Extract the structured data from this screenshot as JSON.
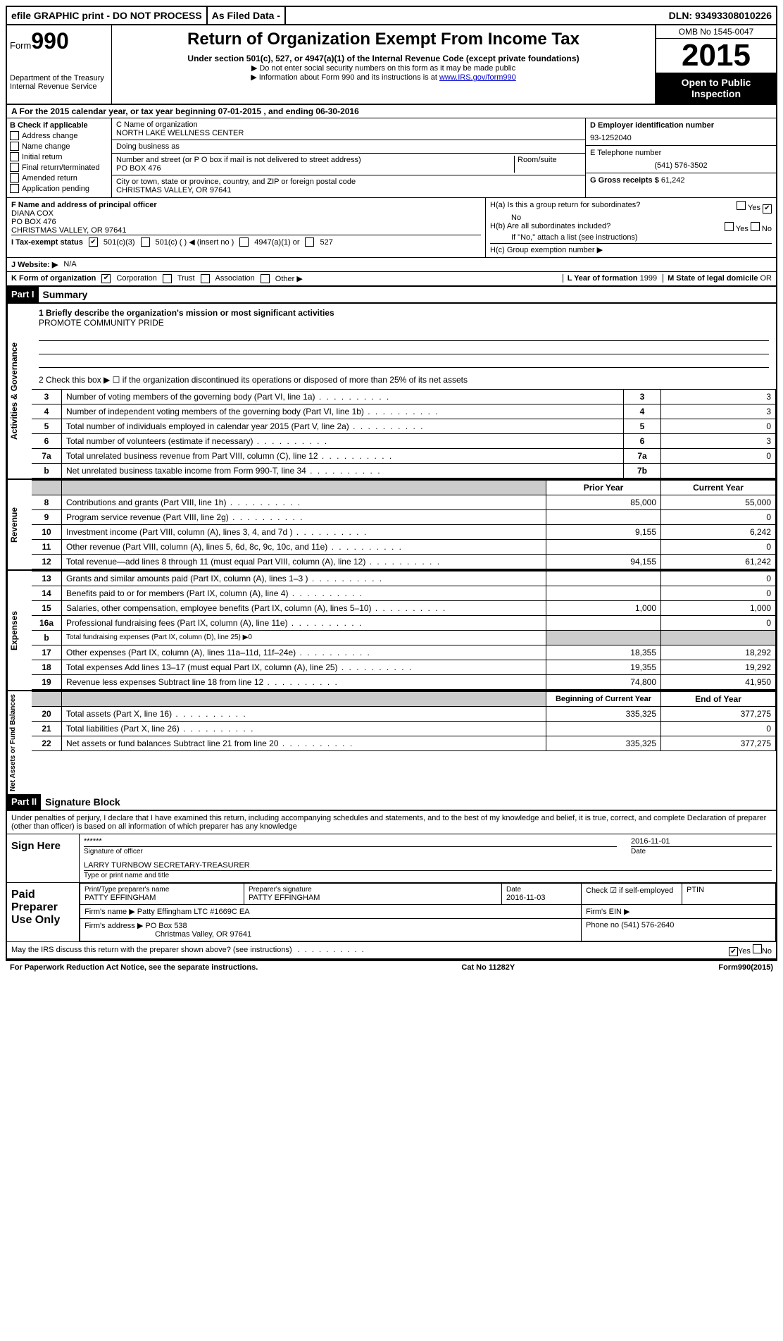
{
  "topbar": {
    "efile": "efile GRAPHIC print - DO NOT PROCESS",
    "asfiled": "As Filed Data -",
    "dln": "DLN: 93493308010226"
  },
  "header": {
    "form_prefix": "Form",
    "form_number": "990",
    "dept": "Department of the Treasury",
    "irs": "Internal Revenue Service",
    "title": "Return of Organization Exempt From Income Tax",
    "subtitle": "Under section 501(c), 527, or 4947(a)(1) of the Internal Revenue Code (except private foundations)",
    "note1": "▶ Do not enter social security numbers on this form as it may be made public",
    "note2": "▶ Information about Form 990 and its instructions is at ",
    "note2_link": "www.IRS.gov/form990",
    "omb": "OMB No 1545-0047",
    "year": "2015",
    "open1": "Open to Public",
    "open2": "Inspection"
  },
  "rowA": "A  For the 2015 calendar year, or tax year beginning 07-01-2015    , and ending 06-30-2016",
  "sectionB": {
    "label": "B  Check if applicable",
    "items": [
      "Address change",
      "Name change",
      "Initial return",
      "Final return/terminated",
      "Amended return",
      "Application pending"
    ]
  },
  "sectionC": {
    "name_label": "C  Name of organization",
    "name": "NORTH LAKE WELLNESS CENTER",
    "dba_label": "Doing business as",
    "dba": "",
    "street_label": "Number and street (or P O  box if mail is not delivered to street address)",
    "room_label": "Room/suite",
    "street": "PO BOX 476",
    "city_label": "City or town, state or province, country, and ZIP or foreign postal code",
    "city": "CHRISTMAS VALLEY, OR  97641"
  },
  "sectionD": {
    "label": "D Employer identification number",
    "value": "93-1252040"
  },
  "sectionE": {
    "label": "E Telephone number",
    "value": "(541) 576-3502"
  },
  "sectionG": {
    "label": "G Gross receipts $",
    "value": "61,242"
  },
  "sectionF": {
    "label": "F  Name and address of principal officer",
    "name": "DIANA COX",
    "addr1": "PO BOX 476",
    "addr2": "CHRISTMAS VALLEY, OR  97641"
  },
  "sectionH": {
    "ha": "H(a)  Is this a group return for subordinates?",
    "ha_no": "No",
    "hb": "H(b)  Are all subordinates included?",
    "hb_note": "If \"No,\" attach a list  (see instructions)",
    "hc": "H(c)   Group exemption number ▶"
  },
  "rowI": {
    "label": "I   Tax-exempt status",
    "opts": [
      "501(c)(3)",
      "501(c) (  ) ◀ (insert no )",
      "4947(a)(1) or",
      "527"
    ]
  },
  "rowJ": {
    "label": "J  Website: ▶",
    "value": "N/A"
  },
  "rowK": {
    "label": "K Form of organization",
    "opts": [
      "Corporation",
      "Trust",
      "Association",
      "Other ▶"
    ]
  },
  "rowL": {
    "label": "L Year of formation",
    "value": "1999"
  },
  "rowM": {
    "label": "M State of legal domicile",
    "value": "OR"
  },
  "part1": {
    "header": "Part I",
    "title": "Summary"
  },
  "governance": {
    "label": "Activities & Governance",
    "q1": "1 Briefly describe the organization's mission or most significant activities",
    "mission": "PROMOTE COMMUNITY PRIDE",
    "q2": "2  Check this box ▶ ☐ if the organization discontinued its operations or disposed of more than 25% of its net assets",
    "rows": [
      {
        "n": "3",
        "desc": "Number of voting members of the governing body (Part VI, line 1a)",
        "code": "3",
        "val": "3"
      },
      {
        "n": "4",
        "desc": "Number of independent voting members of the governing body (Part VI, line 1b)",
        "code": "4",
        "val": "3"
      },
      {
        "n": "5",
        "desc": "Total number of individuals employed in calendar year 2015 (Part V, line 2a)",
        "code": "5",
        "val": "0"
      },
      {
        "n": "6",
        "desc": "Total number of volunteers (estimate if necessary)",
        "code": "6",
        "val": "3"
      },
      {
        "n": "7a",
        "desc": "Total unrelated business revenue from Part VIII, column (C), line 12",
        "code": "7a",
        "val": "0"
      },
      {
        "n": "b",
        "desc": "Net unrelated business taxable income from Form 990-T, line 34",
        "code": "7b",
        "val": ""
      }
    ]
  },
  "revenue": {
    "label": "Revenue",
    "header_prior": "Prior Year",
    "header_curr": "Current Year",
    "rows": [
      {
        "n": "8",
        "desc": "Contributions and grants (Part VIII, line 1h)",
        "prior": "85,000",
        "curr": "55,000"
      },
      {
        "n": "9",
        "desc": "Program service revenue (Part VIII, line 2g)",
        "prior": "",
        "curr": "0"
      },
      {
        "n": "10",
        "desc": "Investment income (Part VIII, column (A), lines 3, 4, and 7d )",
        "prior": "9,155",
        "curr": "6,242"
      },
      {
        "n": "11",
        "desc": "Other revenue (Part VIII, column (A), lines 5, 6d, 8c, 9c, 10c, and 11e)",
        "prior": "",
        "curr": "0"
      },
      {
        "n": "12",
        "desc": "Total revenue—add lines 8 through 11 (must equal Part VIII, column (A), line 12)",
        "prior": "94,155",
        "curr": "61,242"
      }
    ]
  },
  "expenses": {
    "label": "Expenses",
    "rows": [
      {
        "n": "13",
        "desc": "Grants and similar amounts paid (Part IX, column (A), lines 1–3 )",
        "prior": "",
        "curr": "0"
      },
      {
        "n": "14",
        "desc": "Benefits paid to or for members (Part IX, column (A), line 4)",
        "prior": "",
        "curr": "0"
      },
      {
        "n": "15",
        "desc": "Salaries, other compensation, employee benefits (Part IX, column (A), lines 5–10)",
        "prior": "1,000",
        "curr": "1,000"
      },
      {
        "n": "16a",
        "desc": "Professional fundraising fees (Part IX, column (A), line 11e)",
        "prior": "",
        "curr": "0"
      },
      {
        "n": "b",
        "desc": "Total fundraising expenses (Part IX, column (D), line 25) ▶0",
        "prior": "shaded",
        "curr": "shaded"
      },
      {
        "n": "17",
        "desc": "Other expenses (Part IX, column (A), lines 11a–11d, 11f–24e)",
        "prior": "18,355",
        "curr": "18,292"
      },
      {
        "n": "18",
        "desc": "Total expenses  Add lines 13–17 (must equal Part IX, column (A), line 25)",
        "prior": "19,355",
        "curr": "19,292"
      },
      {
        "n": "19",
        "desc": "Revenue less expenses  Subtract line 18 from line 12",
        "prior": "74,800",
        "curr": "41,950"
      }
    ]
  },
  "netassets": {
    "label": "Net Assets or Fund Balances",
    "header_prior": "Beginning of Current Year",
    "header_curr": "End of Year",
    "rows": [
      {
        "n": "20",
        "desc": "Total assets (Part X, line 16)",
        "prior": "335,325",
        "curr": "377,275"
      },
      {
        "n": "21",
        "desc": "Total liabilities (Part X, line 26)",
        "prior": "",
        "curr": "0"
      },
      {
        "n": "22",
        "desc": "Net assets or fund balances  Subtract line 21 from line 20",
        "prior": "335,325",
        "curr": "377,275"
      }
    ]
  },
  "part2": {
    "header": "Part II",
    "title": "Signature Block"
  },
  "sig": {
    "perjury": "Under penalties of perjury, I declare that I have examined this return, including accompanying schedules and statements, and to the best of my knowledge and belief, it is true, correct, and complete  Declaration of preparer (other than officer) is based on all information of which preparer has any knowledge",
    "sign_here": "Sign Here",
    "stars": "******",
    "sig_officer": "Signature of officer",
    "date": "Date",
    "sig_date": "2016-11-01",
    "officer_name": "LARRY TURNBOW SECRETARY-TREASURER",
    "type_name": "Type or print name and title",
    "paid": "Paid Preparer Use Only",
    "prep_name_label": "Print/Type preparer's name",
    "prep_name": "PATTY EFFINGHAM",
    "prep_sig_label": "Preparer's signature",
    "prep_sig": "PATTY EFFINGHAM",
    "prep_date_label": "Date",
    "prep_date": "2016-11-03",
    "self_emp": "Check ☑ if self-employed",
    "ptin": "PTIN",
    "firm_name_label": "Firm's name     ▶",
    "firm_name": "Patty Effingham LTC #1669C EA",
    "firm_ein": "Firm's EIN ▶",
    "firm_addr_label": "Firm's address ▶",
    "firm_addr1": "PO Box 538",
    "firm_addr2": "Christmas Valley, OR  97641",
    "phone_label": "Phone no",
    "phone": "(541) 576-2640",
    "discuss": "May the IRS discuss this return with the preparer shown above? (see instructions)",
    "yes": "Yes",
    "no": "No"
  },
  "footer": {
    "pra": "For Paperwork Reduction Act Notice, see the separate instructions.",
    "cat": "Cat No  11282Y",
    "form": "Form 990 (2015)"
  }
}
